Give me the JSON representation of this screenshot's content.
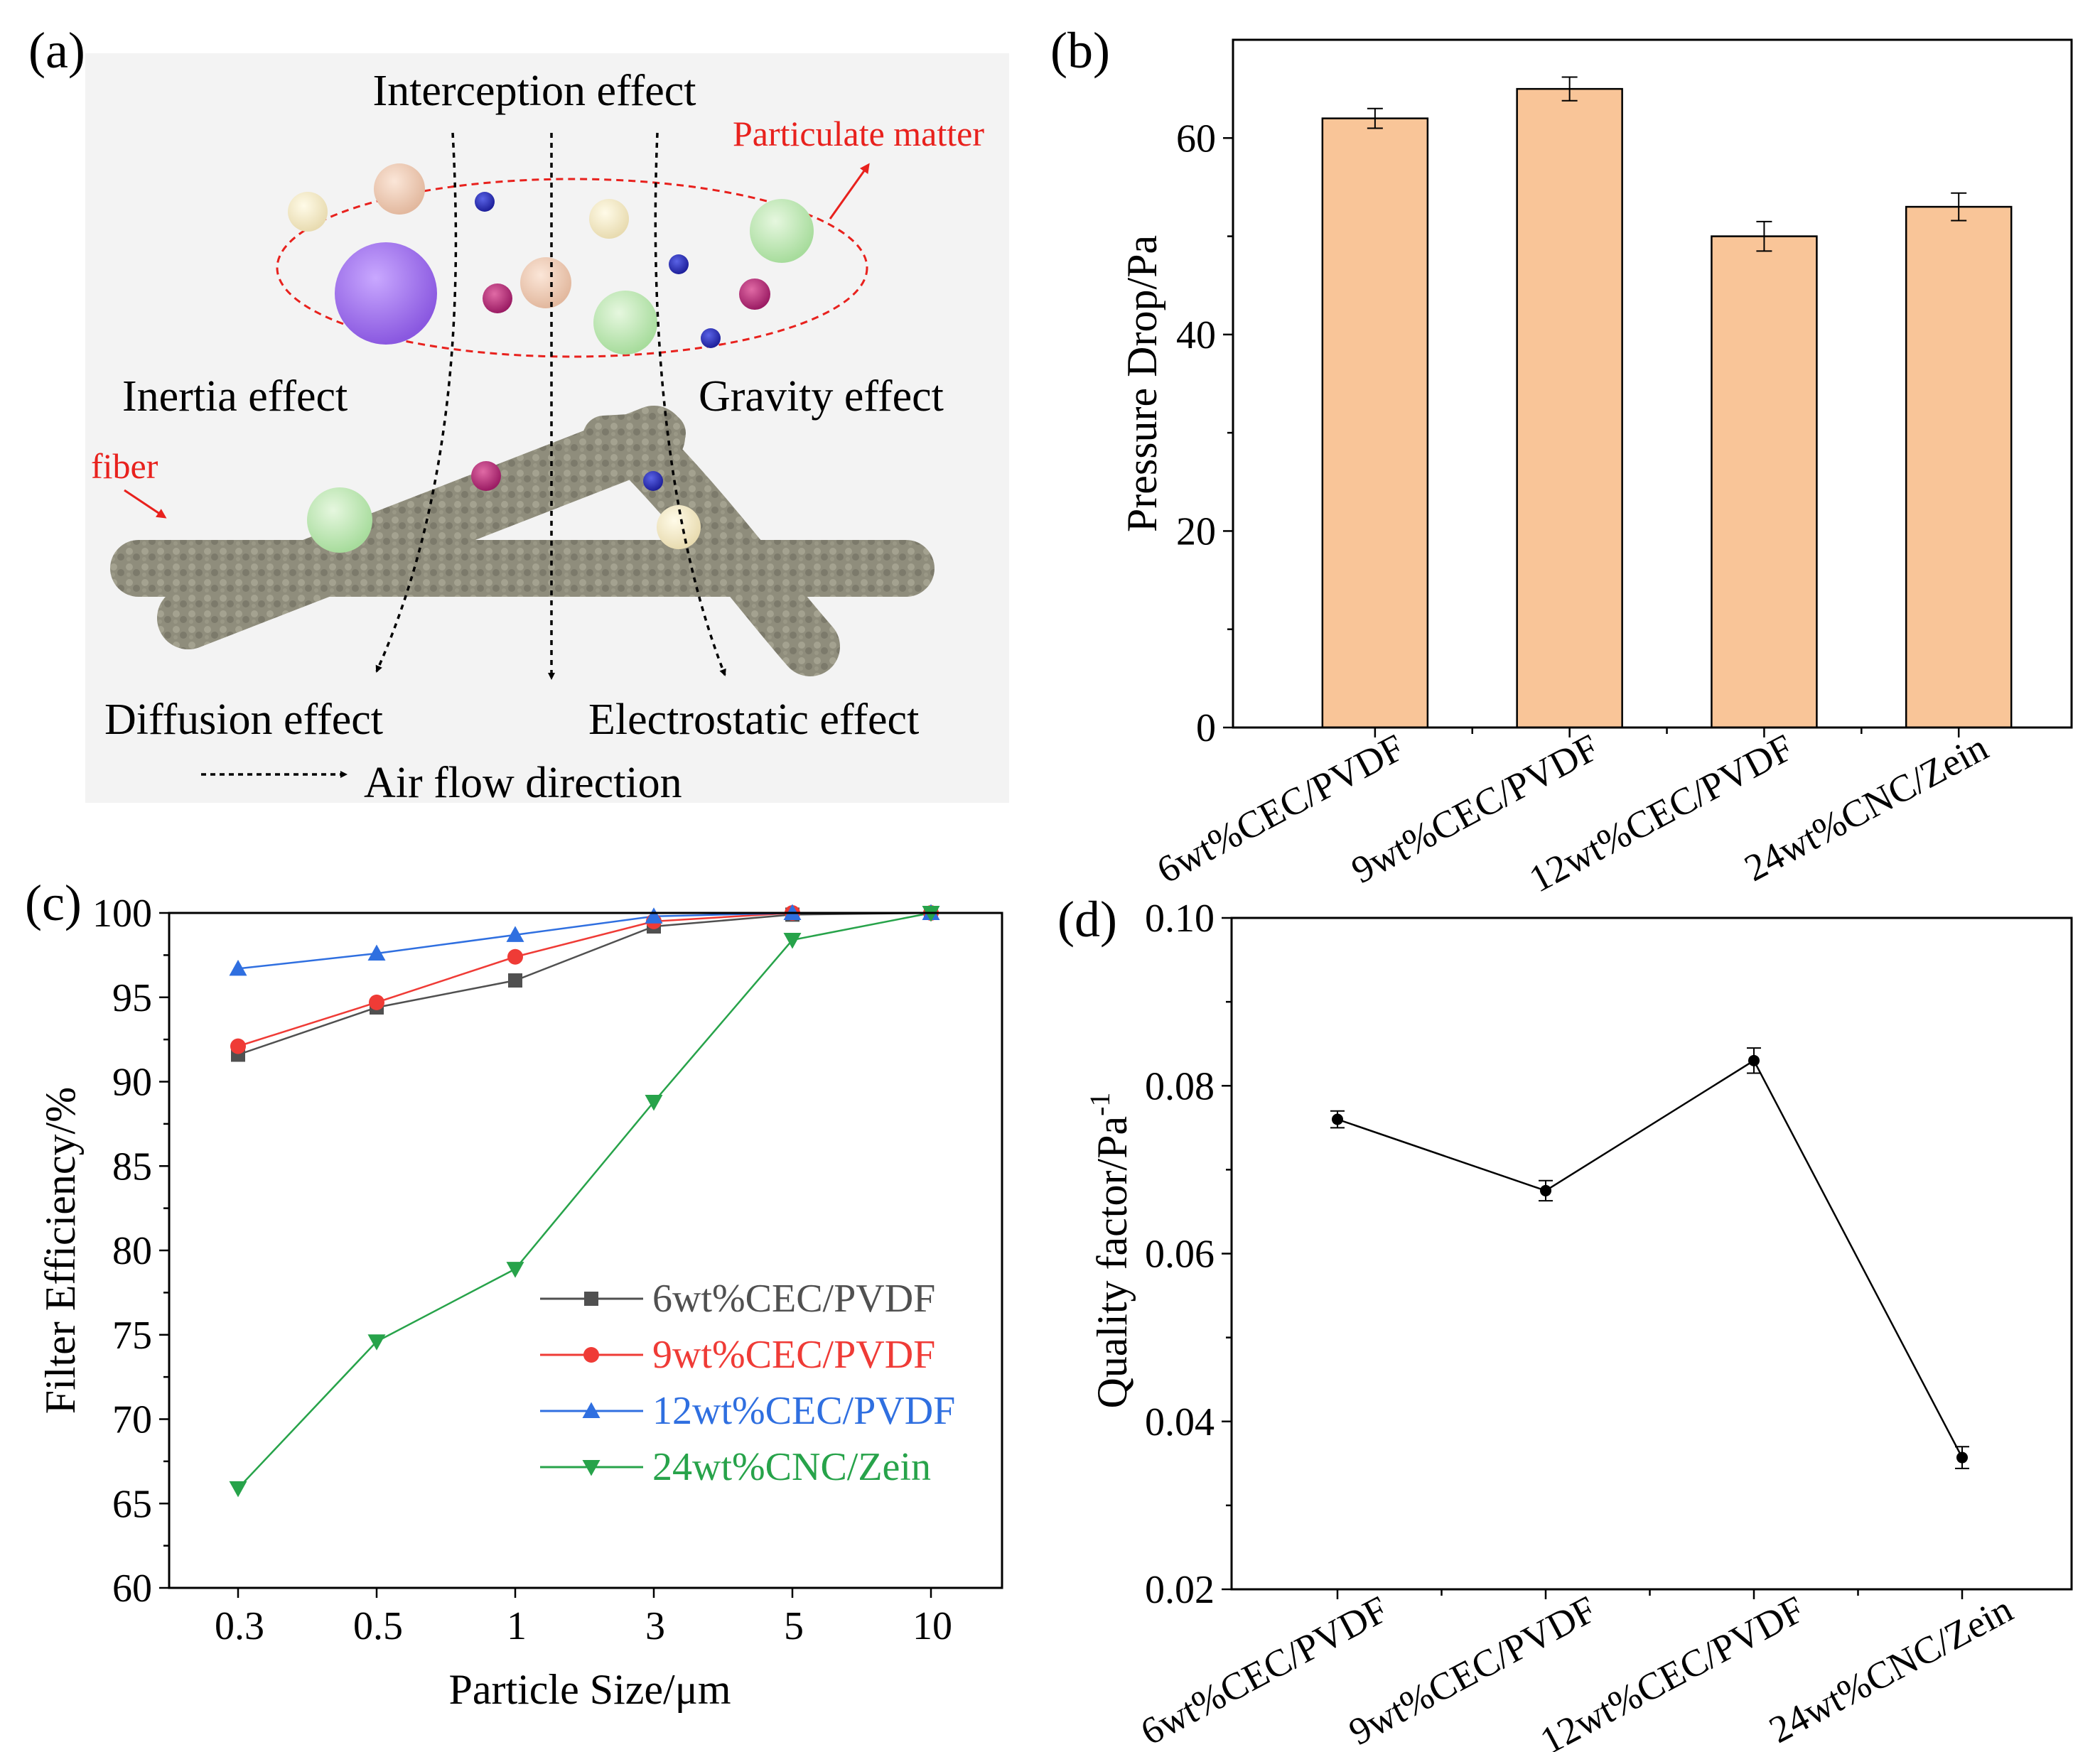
{
  "panels": {
    "a": "(a)",
    "b": "(b)",
    "c": "(c)",
    "d": "(d)"
  },
  "diagram": {
    "labels": {
      "interception": "Interception effect",
      "particulate": "Particulate matter",
      "inertia": "Inertia effect",
      "gravity": "Gravity effect",
      "fiber": "fiber",
      "diffusion": "Diffusion effect",
      "electrostatic": "Electrostatic effect",
      "airflow": "Air flow direction"
    },
    "colors": {
      "fiber": "#8f8d7c",
      "annotation": "#e8211d",
      "background": "#f3f3f3"
    }
  },
  "chart_data": [
    {
      "panel": "b",
      "type": "bar",
      "categories": [
        "6wt%CEC/PVDF",
        "9wt%CEC/PVDF",
        "12wt%CEC/PVDF",
        "24wt%CNC/Zein"
      ],
      "values": [
        62,
        65,
        50,
        53
      ],
      "errors": [
        1.0,
        1.2,
        1.5,
        1.4
      ],
      "ylabel": "Pressure Drop/Pa",
      "xlabel": "",
      "ylim": [
        0,
        70
      ],
      "yticks": [
        "0",
        "20",
        "40",
        "60"
      ],
      "bar_color": "#f9c598"
    },
    {
      "panel": "c",
      "type": "line",
      "x": [
        "0.3",
        "0.5",
        "1",
        "3",
        "5",
        "10"
      ],
      "xlabel": "Particle Size/μm",
      "ylabel": "Filter Efficiency/%",
      "ylim": [
        60,
        100
      ],
      "yticks": [
        "60",
        "65",
        "70",
        "75",
        "80",
        "85",
        "90",
        "95",
        "100"
      ],
      "legend_position": "center-right",
      "series": [
        {
          "name": "6wt%CEC/PVDF",
          "values": [
            91.6,
            94.4,
            96.0,
            99.2,
            99.9,
            100
          ],
          "color": "#505050",
          "marker": "square"
        },
        {
          "name": "9wt%CEC/PVDF",
          "values": [
            92.1,
            94.7,
            97.4,
            99.5,
            100,
            100
          ],
          "color": "#ef3b36",
          "marker": "circle"
        },
        {
          "name": "12wt%CEC/PVDF",
          "values": [
            96.7,
            97.6,
            98.7,
            99.8,
            100,
            100
          ],
          "color": "#2f6fe0",
          "marker": "triangle-up"
        },
        {
          "name": "24wt%CNC/Zein",
          "values": [
            65.9,
            74.6,
            78.9,
            88.8,
            98.4,
            100
          ],
          "color": "#27a34a",
          "marker": "triangle-down"
        }
      ]
    },
    {
      "panel": "d",
      "type": "line",
      "categories": [
        "6wt%CEC/PVDF",
        "9wt%CEC/PVDF",
        "12wt%CEC/PVDF",
        "24wt%CNC/Zein"
      ],
      "values": [
        0.076,
        0.0675,
        0.083,
        0.0357
      ],
      "errors": [
        0.001,
        0.0012,
        0.0015,
        0.0013
      ],
      "ylabel": "Quality factor/Pa",
      "ylabel_superscript": "-1",
      "xlabel": "",
      "ylim": [
        0.02,
        0.1
      ],
      "yticks": [
        "0.02",
        "0.04",
        "0.06",
        "0.08",
        "0.10"
      ]
    }
  ]
}
